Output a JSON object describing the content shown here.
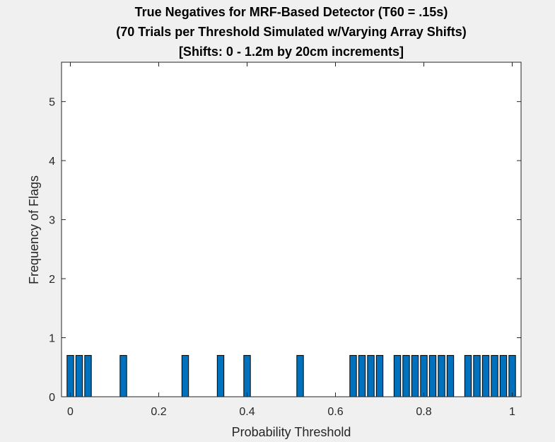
{
  "chart_data": {
    "type": "bar",
    "title": [
      "True Negatives for MRF-Based Detector (T60 = .15s)",
      "(70 Trials per Threshold Simulated w/Varying Array Shifts)",
      "[Shifts: 0 - 1.2m by 20cm increments]"
    ],
    "xlabel": "Probability Threshold",
    "ylabel": "Frequency of Flags",
    "xlim": [
      -0.02,
      1.02
    ],
    "ylim": [
      0,
      5.6667
    ],
    "xticks": [
      0,
      0.2,
      0.4,
      0.6,
      0.8,
      1
    ],
    "xtick_labels": [
      "0",
      "0.2",
      "0.4",
      "0.6",
      "0.8",
      "1"
    ],
    "yticks": [
      0,
      1,
      2,
      3,
      4,
      5
    ],
    "ytick_labels": [
      "0",
      "1",
      "2",
      "3",
      "4",
      "5"
    ],
    "grid": false,
    "bar_color": "#0072bd",
    "bar_width": 0.015,
    "x": [
      0,
      0.02,
      0.04,
      0.12,
      0.26,
      0.34,
      0.4,
      0.52,
      0.64,
      0.66,
      0.68,
      0.7,
      0.74,
      0.76,
      0.78,
      0.8,
      0.82,
      0.84,
      0.86,
      0.9,
      0.92,
      0.94,
      0.96,
      0.98,
      1.0
    ],
    "values": [
      0.7,
      0.7,
      0.7,
      0.7,
      0.7,
      0.7,
      0.7,
      0.7,
      0.7,
      0.7,
      0.7,
      0.7,
      0.7,
      0.7,
      0.7,
      0.7,
      0.7,
      0.7,
      0.7,
      0.7,
      0.7,
      0.7,
      0.7,
      0.7,
      0.7
    ]
  }
}
